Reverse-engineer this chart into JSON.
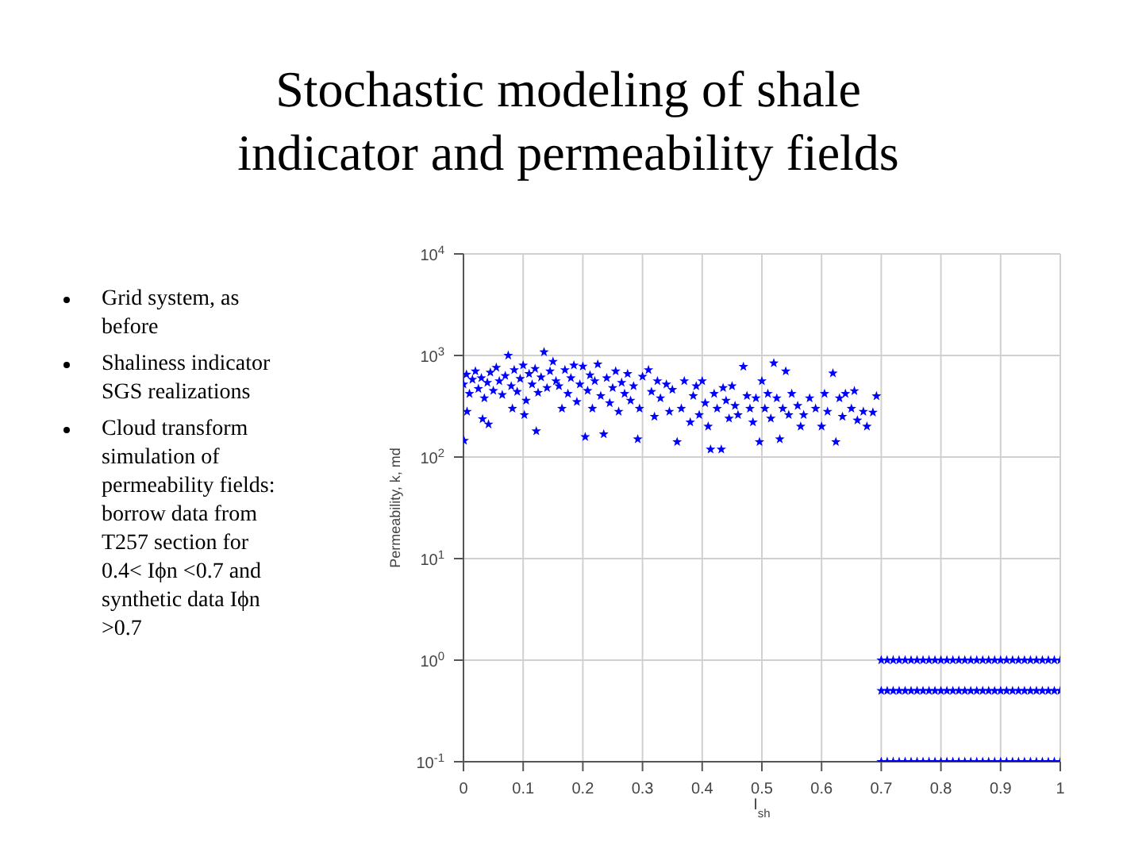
{
  "chart_data": {
    "type": "scatter",
    "title": "Stochastic modeling of shale indicator and permeability fields",
    "annotations": [
      "Grid system, as before",
      "Shaliness indicator SGS realizations",
      "Cloud transform simulation of permeability fields: borrow data from T257 section for 0.4< Iϕn <0.7 and synthetic data Iϕn >0.7"
    ],
    "xlabel": "I$_{sh}$",
    "ylabel": "Permeability, k, md",
    "log": "y",
    "xlim": [
      0,
      1
    ],
    "xticks": [
      0,
      0.1,
      0.2,
      0.3,
      0.4,
      0.5,
      0.6,
      0.7,
      0.8,
      0.9,
      1
    ],
    "ylim": [
      0.1,
      10000
    ],
    "yticks": [
      {
        "value": 0.1,
        "label": "10$^{-1}$"
      },
      {
        "value": 1,
        "label": "10$^{0}$"
      },
      {
        "value": 10,
        "label": "10$^{1}$"
      },
      {
        "value": 100,
        "label": "10$^{2}$"
      },
      {
        "value": 1000,
        "label": "10$^{3}$"
      },
      {
        "value": 10000,
        "label": "10$^{4}$"
      }
    ],
    "grid": true,
    "marker": "star",
    "series": [
      {
        "color": "#0000ff",
        "x": [
          0,
          0.005,
          0.01,
          0.015,
          0.02,
          0.025,
          0.03,
          0.035,
          0.04,
          0.045,
          0.05,
          0.055,
          0.06,
          0.065,
          0.07,
          0.075,
          0.08,
          0.085,
          0.09,
          0.095,
          0.1,
          0.105,
          0.11,
          0.115,
          0.12,
          0.125,
          0.13,
          0.135,
          0.14,
          0.145,
          0.15,
          0.155,
          0.001,
          0.006,
          0.032,
          0.042,
          0.102,
          0.082,
          0.122,
          0.16,
          0.165,
          0.17,
          0.175,
          0.18,
          0.185,
          0.19,
          0.195,
          0.2,
          0.204,
          0.208,
          0.212,
          0.216,
          0.22,
          0.225,
          0.23,
          0.235,
          0.24,
          0.245,
          0.25,
          0.255,
          0.26,
          0.265,
          0.27,
          0.275,
          0.28,
          0.285,
          0.292,
          0.295,
          0.3,
          0.31,
          0.315,
          0.32,
          0.325,
          0.33,
          0.34,
          0.345,
          0.35,
          0.358,
          0.365,
          0.37,
          0.38,
          0.385,
          0.39,
          0.395,
          0.4,
          0.405,
          0.41,
          0.414,
          0.42,
          0.425,
          0.432,
          0.435,
          0.44,
          0.445,
          0.45,
          0.455,
          0.46,
          0.469,
          0.475,
          0.48,
          0.485,
          0.49,
          0.496,
          0.5,
          0.505,
          0.51,
          0.515,
          0.52,
          0.525,
          0.53,
          0.535,
          0.54,
          0.545,
          0.55,
          0.56,
          0.565,
          0.57,
          0.58,
          0.59,
          0.6,
          0.605,
          0.61,
          0.619,
          0.624,
          0.63,
          0.635,
          0.64,
          0.65,
          0.655,
          0.66,
          0.67,
          0.676,
          0.686,
          0.692
        ],
        "values": [
          520,
          650,
          420,
          580,
          700,
          470,
          600,
          380,
          540,
          680,
          450,
          760,
          560,
          410,
          630,
          1000,
          500,
          720,
          440,
          590,
          800,
          360,
          660,
          520,
          740,
          430,
          610,
          1080,
          480,
          700,
          870,
          560,
          145,
          280,
          237,
          210,
          260,
          300,
          180,
          500,
          300,
          720,
          420,
          600,
          800,
          350,
          520,
          780,
          158,
          450,
          640,
          300,
          560,
          820,
          400,
          168,
          600,
          340,
          480,
          700,
          280,
          540,
          420,
          660,
          360,
          500,
          150,
          300,
          620,
          720,
          440,
          250,
          560,
          380,
          520,
          280,
          460,
          141,
          300,
          560,
          220,
          400,
          500,
          260,
          560,
          340,
          200,
          119,
          420,
          300,
          119,
          480,
          360,
          240,
          500,
          320,
          260,
          776,
          400,
          300,
          220,
          380,
          141,
          560,
          300,
          420,
          240,
          841,
          380,
          150,
          300,
          700,
          260,
          420,
          320,
          200,
          260,
          380,
          300,
          200,
          420,
          280,
          668,
          141,
          380,
          250,
          420,
          300,
          447,
          230,
          280,
          200,
          275,
          398
        ]
      },
      {
        "color": "#0000ff",
        "x": [
          0.7,
          0.71,
          0.72,
          0.73,
          0.74,
          0.75,
          0.76,
          0.77,
          0.78,
          0.79,
          0.8,
          0.81,
          0.82,
          0.83,
          0.84,
          0.85,
          0.86,
          0.87,
          0.88,
          0.89,
          0.9,
          0.91,
          0.92,
          0.93,
          0.94,
          0.95,
          0.96,
          0.97,
          0.98,
          0.99,
          1,
          0.7,
          0.71,
          0.72,
          0.73,
          0.74,
          0.75,
          0.76,
          0.77,
          0.78,
          0.79,
          0.8,
          0.81,
          0.82,
          0.83,
          0.84,
          0.85,
          0.86,
          0.87,
          0.88,
          0.89,
          0.9,
          0.91,
          0.92,
          0.93,
          0.94,
          0.95,
          0.96,
          0.97,
          0.98,
          0.99,
          1,
          0.7,
          0.71,
          0.72,
          0.73,
          0.74,
          0.75,
          0.76,
          0.77,
          0.78,
          0.79,
          0.8,
          0.81,
          0.82,
          0.83,
          0.84,
          0.85,
          0.86,
          0.87,
          0.88,
          0.89,
          0.9,
          0.91,
          0.92,
          0.93,
          0.94,
          0.95,
          0.96,
          0.97,
          0.98,
          0.99,
          1
        ],
        "values": [
          1,
          1,
          1,
          1,
          1,
          1,
          1,
          1,
          1,
          1,
          1,
          1,
          1,
          1,
          1,
          1,
          1,
          1,
          1,
          1,
          1,
          1,
          1,
          1,
          1,
          1,
          1,
          1,
          1,
          1,
          1,
          0.5,
          0.5,
          0.5,
          0.5,
          0.5,
          0.5,
          0.5,
          0.5,
          0.5,
          0.5,
          0.5,
          0.5,
          0.5,
          0.5,
          0.5,
          0.5,
          0.5,
          0.5,
          0.5,
          0.5,
          0.5,
          0.5,
          0.5,
          0.5,
          0.5,
          0.5,
          0.5,
          0.5,
          0.5,
          0.5,
          0.5,
          0.1,
          0.1,
          0.1,
          0.1,
          0.1,
          0.1,
          0.1,
          0.1,
          0.1,
          0.1,
          0.1,
          0.1,
          0.1,
          0.1,
          0.1,
          0.1,
          0.1,
          0.1,
          0.1,
          0.1,
          0.1,
          0.1,
          0.1,
          0.1,
          0.1,
          0.1,
          0.1,
          0.1,
          0.1,
          0.1,
          0.1
        ]
      }
    ]
  }
}
